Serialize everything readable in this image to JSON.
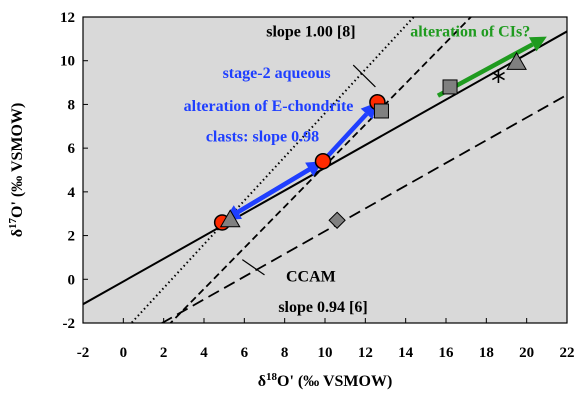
{
  "chart_data": {
    "type": "scatter",
    "xlim": [
      -2,
      22
    ],
    "ylim": [
      -2,
      12
    ],
    "x_ticks": [
      "-2",
      "0",
      "2",
      "4",
      "6",
      "8",
      "10",
      "12",
      "14",
      "16",
      "18",
      "20",
      "22"
    ],
    "y_ticks": [
      "-2",
      "0",
      "2",
      "4",
      "6",
      "8",
      "10",
      "12"
    ],
    "xlabel": {
      "pre": "δ",
      "sup": "18",
      "post": "O' (‰ VSMOW)"
    },
    "ylabel": {
      "pre": "δ",
      "sup": "17",
      "post": "O' (‰ VSMOW)"
    },
    "grid": false,
    "background": "#d9d9d9",
    "lines": [
      {
        "style": "solid",
        "slope": 0.52,
        "intercept": -0.1
      },
      {
        "style": "dotted",
        "slope": 1.0,
        "intercept": -2.4
      },
      {
        "style": "dashed",
        "slope": 0.94,
        "intercept": -4.2
      },
      {
        "style": "long-dashed",
        "slope": 0.52,
        "intercept": -3.0
      }
    ],
    "series": [
      {
        "marker": "circle",
        "color": "#ff2a00",
        "points": [
          [
            4.9,
            2.6
          ],
          [
            9.9,
            5.4
          ],
          [
            12.6,
            8.1
          ]
        ]
      },
      {
        "marker": "triangle",
        "color": "#808080",
        "points": [
          [
            5.3,
            2.7
          ],
          [
            19.5,
            9.9
          ]
        ]
      },
      {
        "marker": "square",
        "color": "#808080",
        "points": [
          [
            12.8,
            7.7
          ],
          [
            16.2,
            8.8
          ]
        ]
      },
      {
        "marker": "diamond",
        "color": "#808080",
        "points": [
          [
            10.6,
            2.7
          ]
        ]
      },
      {
        "marker": "star",
        "color": "#000000",
        "points": [
          [
            18.6,
            9.3
          ]
        ]
      }
    ],
    "arrows": [
      {
        "color": "#1f3fff",
        "from": [
          9.9,
          5.4
        ],
        "to": [
          5.0,
          2.7
        ]
      },
      {
        "color": "#1f3fff",
        "from": [
          5.0,
          2.7
        ],
        "to": [
          9.9,
          5.4
        ]
      },
      {
        "color": "#1f3fff",
        "from": [
          9.9,
          5.4
        ],
        "to": [
          12.6,
          8.1
        ]
      },
      {
        "color": "#1f9b1f",
        "from": [
          15.6,
          8.4
        ],
        "to": [
          21.0,
          11.1
        ]
      }
    ],
    "annotations": [
      {
        "text": "slope 1.00 [8]",
        "color": "#000000",
        "x": 9.3,
        "y": 11.1,
        "anchor": "middle"
      },
      {
        "text": "alteration of CIs?",
        "color": "#1f9b1f",
        "x": 17.2,
        "y": 11.1,
        "anchor": "middle"
      },
      {
        "text": "stage-2 aqueous",
        "color": "#1f3fff",
        "x": 7.6,
        "y": 9.2,
        "anchor": "middle"
      },
      {
        "text": "alteration of E-chondrite",
        "color": "#1f3fff",
        "x": 7.2,
        "y": 7.7,
        "anchor": "middle"
      },
      {
        "text": "clasts: slope 0.98",
        "color": "#1f3fff",
        "x": 6.9,
        "y": 6.3,
        "anchor": "middle"
      },
      {
        "text": "CCAM",
        "color": "#000000",
        "x": 9.3,
        "y": -0.1,
        "anchor": "middle"
      },
      {
        "text": "slope 0.94 [6]",
        "color": "#000000",
        "x": 9.9,
        "y": -1.5,
        "anchor": "middle"
      }
    ],
    "pointers": [
      {
        "from": [
          11.4,
          9.8
        ],
        "to": [
          12.5,
          8.8
        ]
      },
      {
        "from": [
          7.0,
          0.2
        ],
        "to": [
          5.9,
          0.9
        ]
      }
    ]
  }
}
